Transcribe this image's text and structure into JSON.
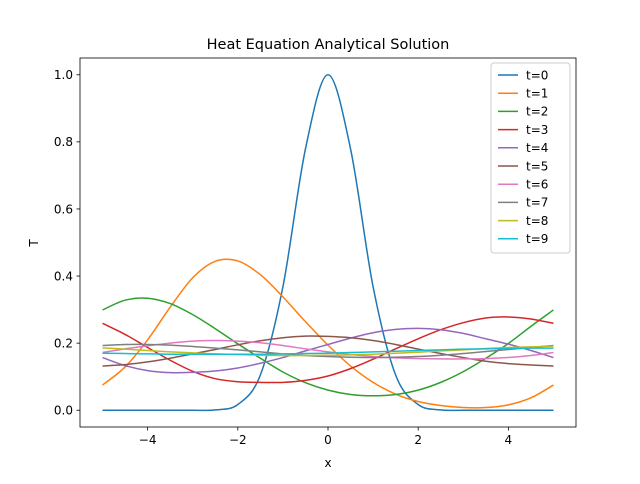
{
  "chart_data": {
    "type": "line",
    "title": "Heat Equation Analytical Solution",
    "xlabel": "x",
    "ylabel": "T",
    "xlim": [
      -5.5,
      5.5
    ],
    "ylim": [
      -0.05,
      1.05
    ],
    "xticks": [
      -4,
      -2,
      0,
      2,
      4
    ],
    "yticks": [
      0.0,
      0.2,
      0.4,
      0.6,
      0.8,
      1.0
    ],
    "xtick_labels": [
      "−4",
      "−2",
      "0",
      "2",
      "4"
    ],
    "ytick_labels": [
      "0.0",
      "0.2",
      "0.4",
      "0.6",
      "0.8",
      "1.0"
    ],
    "grid": false,
    "legend_position": "upper-right",
    "x": [
      -5,
      -4.5,
      -4,
      -3.5,
      -3,
      -2.5,
      -2,
      -1.5,
      -1,
      -0.5,
      0,
      0.5,
      1,
      1.5,
      2,
      2.5,
      3,
      3.5,
      4,
      4.5,
      5
    ],
    "series": [
      {
        "name": "t=0",
        "color": "#1f77b4",
        "values": [
          0.0,
          0.0,
          0.0,
          0.0,
          0.0,
          0.001,
          0.017,
          0.105,
          0.368,
          0.779,
          1.0,
          0.779,
          0.368,
          0.105,
          0.017,
          0.001,
          0.0,
          0.0,
          0.0,
          0.0,
          0.0
        ]
      },
      {
        "name": "t=1",
        "color": "#ff7f0e",
        "values": [
          0.075,
          0.129,
          0.21,
          0.307,
          0.395,
          0.444,
          0.445,
          0.404,
          0.338,
          0.264,
          0.194,
          0.132,
          0.083,
          0.048,
          0.026,
          0.014,
          0.008,
          0.008,
          0.016,
          0.037,
          0.075
        ]
      },
      {
        "name": "t=2",
        "color": "#2ca02c",
        "values": [
          0.299,
          0.328,
          0.334,
          0.318,
          0.285,
          0.243,
          0.198,
          0.155,
          0.114,
          0.082,
          0.06,
          0.047,
          0.043,
          0.047,
          0.06,
          0.083,
          0.115,
          0.155,
          0.199,
          0.25,
          0.299
        ]
      },
      {
        "name": "t=3",
        "color": "#d62728",
        "values": [
          0.259,
          0.226,
          0.187,
          0.149,
          0.116,
          0.094,
          0.085,
          0.083,
          0.083,
          0.089,
          0.102,
          0.124,
          0.152,
          0.183,
          0.213,
          0.24,
          0.261,
          0.275,
          0.278,
          0.272,
          0.259
        ]
      },
      {
        "name": "t=4",
        "color": "#9467bd",
        "values": [
          0.157,
          0.133,
          0.118,
          0.112,
          0.113,
          0.117,
          0.126,
          0.14,
          0.157,
          0.177,
          0.196,
          0.215,
          0.231,
          0.241,
          0.244,
          0.24,
          0.229,
          0.213,
          0.197,
          0.178,
          0.157
        ]
      },
      {
        "name": "t=5",
        "color": "#8c564b",
        "values": [
          0.132,
          0.136,
          0.144,
          0.155,
          0.168,
          0.181,
          0.195,
          0.207,
          0.216,
          0.221,
          0.22,
          0.216,
          0.208,
          0.196,
          0.182,
          0.169,
          0.157,
          0.146,
          0.139,
          0.135,
          0.132
        ]
      },
      {
        "name": "t=6",
        "color": "#e377c2",
        "values": [
          0.172,
          0.183,
          0.192,
          0.2,
          0.206,
          0.208,
          0.206,
          0.201,
          0.193,
          0.183,
          0.174,
          0.166,
          0.16,
          0.156,
          0.154,
          0.153,
          0.153,
          0.154,
          0.157,
          0.163,
          0.172
        ]
      },
      {
        "name": "t=7",
        "color": "#7f7f7f",
        "values": [
          0.193,
          0.196,
          0.196,
          0.194,
          0.19,
          0.185,
          0.18,
          0.174,
          0.168,
          0.163,
          0.16,
          0.158,
          0.157,
          0.158,
          0.16,
          0.164,
          0.169,
          0.175,
          0.181,
          0.187,
          0.193
        ]
      },
      {
        "name": "t=8",
        "color": "#bcbd22",
        "values": [
          0.186,
          0.182,
          0.178,
          0.174,
          0.171,
          0.168,
          0.166,
          0.164,
          0.163,
          0.163,
          0.164,
          0.165,
          0.167,
          0.17,
          0.173,
          0.177,
          0.18,
          0.184,
          0.187,
          0.189,
          0.191
        ]
      },
      {
        "name": "t=9",
        "color": "#17becf",
        "values": [
          0.17,
          0.169,
          0.168,
          0.167,
          0.167,
          0.167,
          0.167,
          0.167,
          0.168,
          0.169,
          0.17,
          0.172,
          0.174,
          0.176,
          0.178,
          0.18,
          0.182,
          0.183,
          0.184,
          0.185,
          0.185
        ]
      }
    ]
  }
}
